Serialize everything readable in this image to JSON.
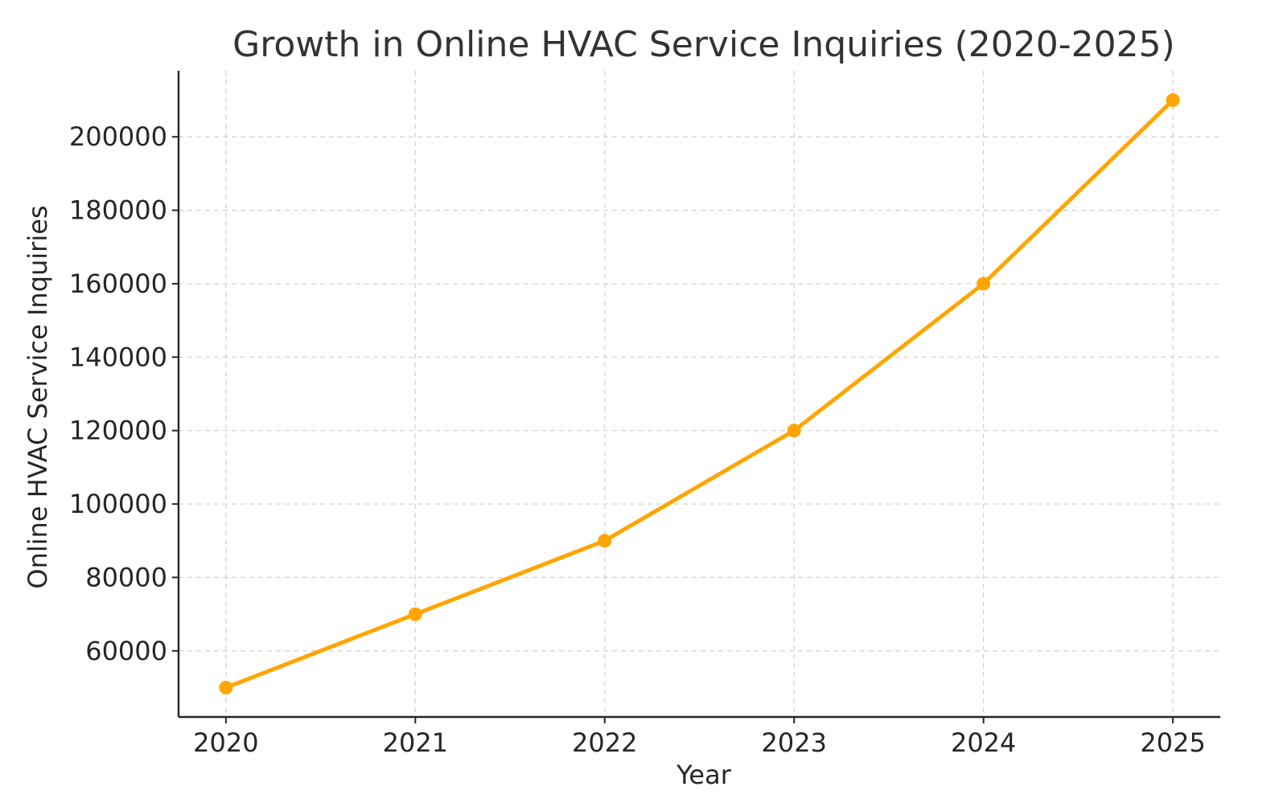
{
  "chart_data": {
    "type": "line",
    "title": "Growth in Online HVAC Service Inquiries (2020-2025)",
    "xlabel": "Year",
    "ylabel": "Online HVAC Service Inquiries",
    "x": [
      2020,
      2021,
      2022,
      2023,
      2024,
      2025
    ],
    "series": [
      {
        "values": [
          50000,
          70000,
          90000,
          120000,
          160000,
          210000
        ],
        "color": "#FFA500",
        "marker": "circle"
      }
    ],
    "xticks": [
      "2020",
      "2021",
      "2022",
      "2023",
      "2024",
      "2025"
    ],
    "yticks": [
      60000,
      80000,
      100000,
      120000,
      140000,
      160000,
      180000,
      200000
    ],
    "xlim": [
      2019.75,
      2025.25
    ],
    "ylim": [
      42000,
      218000
    ],
    "grid": true,
    "legend": "none"
  }
}
